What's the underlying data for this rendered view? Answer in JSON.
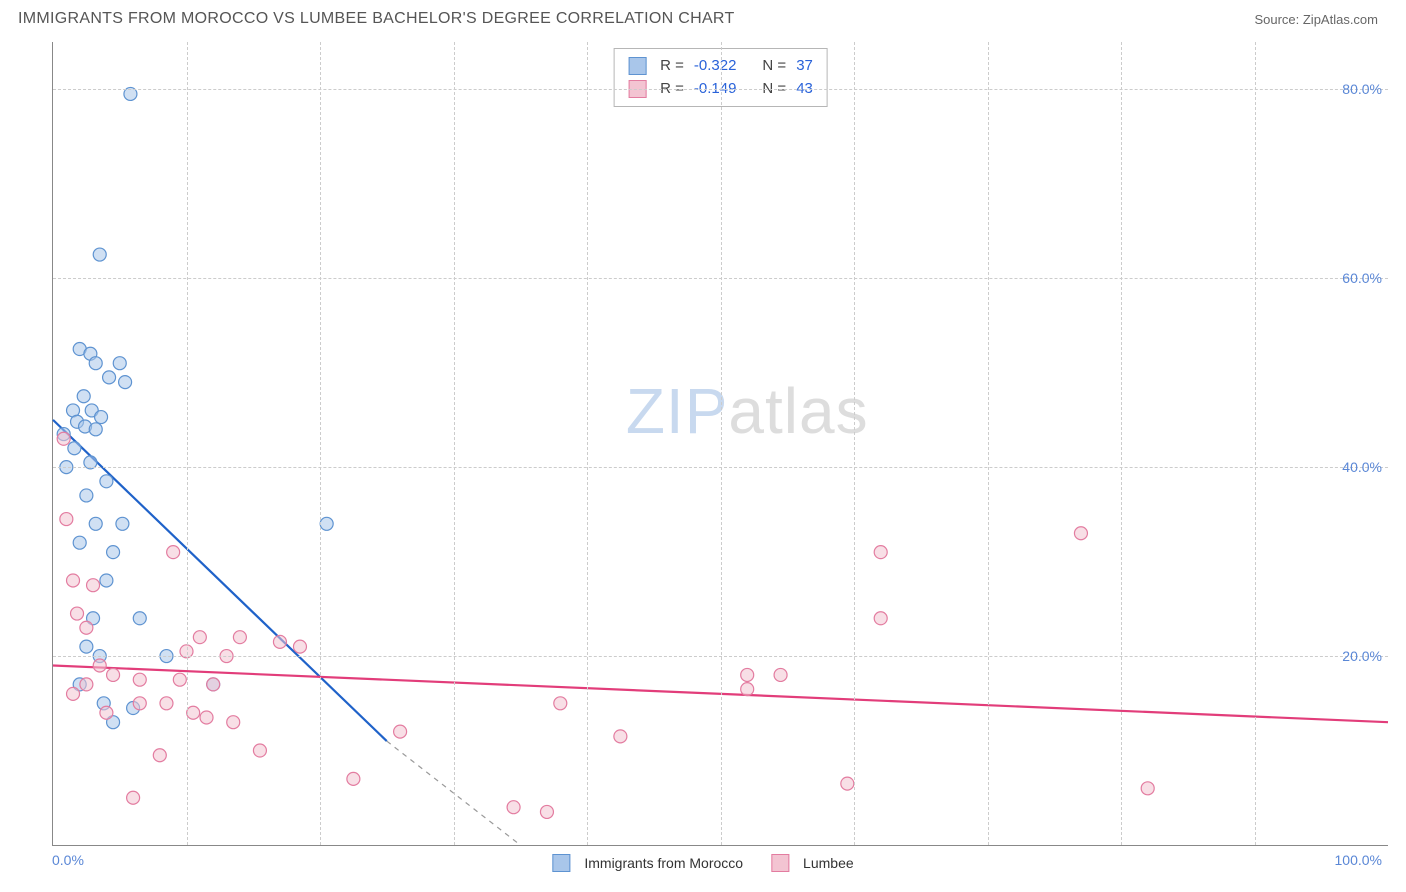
{
  "title": "IMMIGRANTS FROM MOROCCO VS LUMBEE BACHELOR'S DEGREE CORRELATION CHART",
  "source_label": "Source: ",
  "source_name": "ZipAtlas.com",
  "ylabel": "Bachelor's Degree",
  "watermark_a": "ZIP",
  "watermark_b": "atlas",
  "chart": {
    "type": "scatter",
    "background_color": "#ffffff",
    "grid_color": "#cccccc",
    "axis_color": "#888888",
    "xlim": [
      0,
      100
    ],
    "ylim": [
      0,
      85
    ],
    "yticks": [
      20.0,
      40.0,
      60.0,
      80.0
    ],
    "ytick_labels": [
      "20.0%",
      "40.0%",
      "60.0%",
      "80.0%"
    ],
    "ytick_color": "#5a87d6",
    "xtick_min_label": "0.0%",
    "xtick_max_label": "100.0%",
    "xtick_color": "#5a87d6",
    "x_gridlines": [
      10,
      20,
      30,
      40,
      50,
      60,
      70,
      80,
      90
    ],
    "marker_radius": 6.5,
    "marker_opacity": 0.55,
    "series": [
      {
        "name": "Immigrants from Morocco",
        "fill": "#a9c6ea",
        "stroke": "#5e93d1",
        "line_color": "#1f62c9",
        "R": "-0.322",
        "N": "37",
        "trend": {
          "x1": 0,
          "y1": 45,
          "x2": 25,
          "y2": 11,
          "dash_to_x": 35,
          "dash_to_y": 0
        },
        "points": [
          [
            5.8,
            79.5
          ],
          [
            3.5,
            62.5
          ],
          [
            2.0,
            52.5
          ],
          [
            2.8,
            52.0
          ],
          [
            3.2,
            51.0
          ],
          [
            5.0,
            51.0
          ],
          [
            4.2,
            49.5
          ],
          [
            5.4,
            49.0
          ],
          [
            2.3,
            47.5
          ],
          [
            1.5,
            46.0
          ],
          [
            2.9,
            46.0
          ],
          [
            3.6,
            45.3
          ],
          [
            1.8,
            44.8
          ],
          [
            2.4,
            44.3
          ],
          [
            3.2,
            44.0
          ],
          [
            0.8,
            43.5
          ],
          [
            1.6,
            42.0
          ],
          [
            2.8,
            40.5
          ],
          [
            1.0,
            40.0
          ],
          [
            4.0,
            38.5
          ],
          [
            2.5,
            37.0
          ],
          [
            3.2,
            34.0
          ],
          [
            5.2,
            34.0
          ],
          [
            20.5,
            34.0
          ],
          [
            2.0,
            32.0
          ],
          [
            4.5,
            31.0
          ],
          [
            4.0,
            28.0
          ],
          [
            3.0,
            24.0
          ],
          [
            6.5,
            24.0
          ],
          [
            2.5,
            21.0
          ],
          [
            3.5,
            20.0
          ],
          [
            8.5,
            20.0
          ],
          [
            2.0,
            17.0
          ],
          [
            12.0,
            17.0
          ],
          [
            3.8,
            15.0
          ],
          [
            6.0,
            14.5
          ],
          [
            4.5,
            13.0
          ]
        ]
      },
      {
        "name": "Lumbee",
        "fill": "#f3c4d2",
        "stroke": "#e37ca0",
        "line_color": "#e23d7a",
        "R": "-0.149",
        "N": "43",
        "trend": {
          "x1": 0,
          "y1": 19,
          "x2": 100,
          "y2": 13
        },
        "points": [
          [
            0.8,
            43.0
          ],
          [
            1.0,
            34.5
          ],
          [
            77.0,
            33.0
          ],
          [
            9.0,
            31.0
          ],
          [
            62.0,
            31.0
          ],
          [
            1.5,
            28.0
          ],
          [
            3.0,
            27.5
          ],
          [
            1.8,
            24.5
          ],
          [
            62.0,
            24.0
          ],
          [
            2.5,
            23.0
          ],
          [
            11.0,
            22.0
          ],
          [
            14.0,
            22.0
          ],
          [
            17.0,
            21.5
          ],
          [
            18.5,
            21.0
          ],
          [
            10.0,
            20.5
          ],
          [
            13.0,
            20.0
          ],
          [
            3.5,
            19.0
          ],
          [
            52.0,
            18.0
          ],
          [
            54.5,
            18.0
          ],
          [
            4.5,
            18.0
          ],
          [
            6.5,
            17.5
          ],
          [
            9.5,
            17.5
          ],
          [
            2.5,
            17.0
          ],
          [
            12.0,
            17.0
          ],
          [
            1.5,
            16.0
          ],
          [
            52.0,
            16.5
          ],
          [
            38.0,
            15.0
          ],
          [
            6.5,
            15.0
          ],
          [
            8.5,
            15.0
          ],
          [
            4.0,
            14.0
          ],
          [
            10.5,
            14.0
          ],
          [
            11.5,
            13.5
          ],
          [
            13.5,
            13.0
          ],
          [
            26.0,
            12.0
          ],
          [
            42.5,
            11.5
          ],
          [
            15.5,
            10.0
          ],
          [
            8.0,
            9.5
          ],
          [
            22.5,
            7.0
          ],
          [
            59.5,
            6.5
          ],
          [
            82.0,
            6.0
          ],
          [
            6.0,
            5.0
          ],
          [
            34.5,
            4.0
          ],
          [
            37.0,
            3.5
          ]
        ]
      }
    ]
  },
  "stats_labels": {
    "R": "R =",
    "N": "N ="
  }
}
